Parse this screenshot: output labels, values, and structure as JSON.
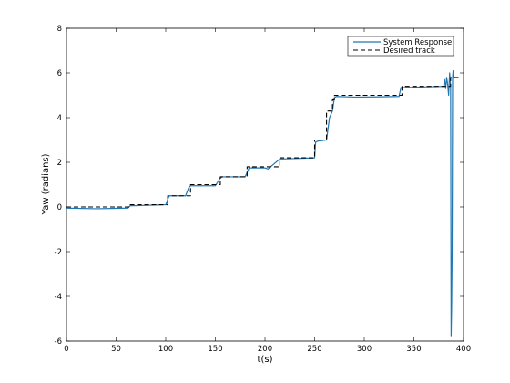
{
  "chart_data": {
    "type": "line",
    "xlabel": "t(s)",
    "ylabel": "Yaw (radians)",
    "xlim": [
      0,
      400
    ],
    "ylim": [
      -6,
      8
    ],
    "xticks": [
      0,
      50,
      100,
      150,
      200,
      250,
      300,
      350,
      400
    ],
    "yticks": [
      -6,
      -4,
      -2,
      0,
      2,
      4,
      6,
      8
    ],
    "grid": false,
    "legend_position": "top-right",
    "series": [
      {
        "name": "System Response",
        "color": "#1f77b4",
        "style": "solid",
        "x": [
          0,
          30,
          62,
          64,
          100,
          103,
          104,
          120,
          123,
          125,
          150,
          155,
          157,
          180,
          184,
          200,
          203,
          215,
          218,
          250,
          251,
          253,
          262,
          265,
          268,
          270,
          272,
          290,
          310,
          335,
          337,
          340,
          380,
          381,
          382,
          383,
          384,
          385,
          386,
          387,
          387.5,
          388,
          388.5,
          389,
          389.5,
          390,
          391
        ],
        "y": [
          -0.05,
          -0.08,
          -0.05,
          0.05,
          0.1,
          0.45,
          0.5,
          0.5,
          0.85,
          0.95,
          0.95,
          1.3,
          1.35,
          1.35,
          1.75,
          1.75,
          1.7,
          2.15,
          2.15,
          2.2,
          2.9,
          2.95,
          3.0,
          4.0,
          4.3,
          4.9,
          4.95,
          4.92,
          4.93,
          4.95,
          5.35,
          5.35,
          5.4,
          5.7,
          5.3,
          5.8,
          5.5,
          5.0,
          6.0,
          5.4,
          -5.8,
          -4.5,
          -2.0,
          5.8,
          6.1,
          5.8,
          5.8
        ]
      },
      {
        "name": "Desired track",
        "color": "#000000",
        "style": "dashed",
        "x": [
          0,
          63,
          63,
          102,
          102,
          125,
          125,
          155,
          155,
          182,
          182,
          215,
          215,
          250,
          250,
          262,
          262,
          268,
          268,
          270,
          270,
          338,
          338,
          387,
          387,
          395
        ],
        "y": [
          0,
          0,
          0.1,
          0.1,
          0.5,
          0.5,
          1.0,
          1.0,
          1.35,
          1.35,
          1.8,
          1.8,
          2.2,
          2.2,
          3.0,
          3.0,
          4.3,
          4.3,
          4.8,
          4.8,
          5.0,
          5.0,
          5.4,
          5.4,
          5.8,
          5.8
        ]
      }
    ]
  }
}
